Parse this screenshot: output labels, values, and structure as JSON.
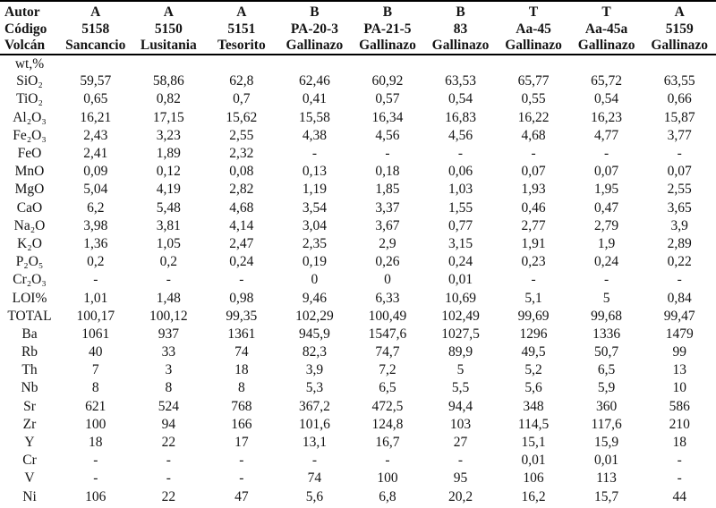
{
  "table": {
    "header": {
      "row_labels": [
        "Autor",
        "Código",
        "Volcán"
      ],
      "columns": [
        {
          "autor": "A",
          "codigo": "5158",
          "volcan": "Sancancio"
        },
        {
          "autor": "A",
          "codigo": "5150",
          "volcan": "Lusitania"
        },
        {
          "autor": "A",
          "codigo": "5151",
          "volcan": "Tesorito"
        },
        {
          "autor": "B",
          "codigo": "PA-20-3",
          "volcan": "Gallinazo"
        },
        {
          "autor": "B",
          "codigo": "PA-21-5",
          "volcan": "Gallinazo"
        },
        {
          "autor": "B",
          "codigo": "83",
          "volcan": "Gallinazo"
        },
        {
          "autor": "T",
          "codigo": "Aa-45",
          "volcan": "Gallinazo"
        },
        {
          "autor": "T",
          "codigo": "Aa-45a",
          "volcan": "Gallinazo"
        },
        {
          "autor": "A",
          "codigo": "5159",
          "volcan": "Gallinazo"
        }
      ]
    },
    "rows": [
      {
        "label": "wt,%",
        "values": [
          "",
          "",
          "",
          "",
          "",
          "",
          "",
          "",
          ""
        ]
      },
      {
        "label": "SiO₂",
        "values": [
          "59,57",
          "58,86",
          "62,8",
          "62,46",
          "60,92",
          "63,53",
          "65,77",
          "65,72",
          "63,55"
        ]
      },
      {
        "label": "TiO₂",
        "values": [
          "0,65",
          "0,82",
          "0,7",
          "0,41",
          "0,57",
          "0,54",
          "0,55",
          "0,54",
          "0,66"
        ]
      },
      {
        "label": "Al₂O₃",
        "values": [
          "16,21",
          "17,15",
          "15,62",
          "15,58",
          "16,34",
          "16,83",
          "16,22",
          "16,23",
          "15,87"
        ]
      },
      {
        "label": "Fe₂O₃",
        "values": [
          "2,43",
          "3,23",
          "2,55",
          "4,38",
          "4,56",
          "4,56",
          "4,68",
          "4,77",
          "3,77"
        ]
      },
      {
        "label": "FeO",
        "values": [
          "2,41",
          "1,89",
          "2,32",
          "-",
          "-",
          "-",
          "-",
          "-",
          "-"
        ]
      },
      {
        "label": "MnO",
        "values": [
          "0,09",
          "0,12",
          "0,08",
          "0,13",
          "0,18",
          "0,06",
          "0,07",
          "0,07",
          "0,07"
        ]
      },
      {
        "label": "MgO",
        "values": [
          "5,04",
          "4,19",
          "2,82",
          "1,19",
          "1,85",
          "1,03",
          "1,93",
          "1,95",
          "2,55"
        ]
      },
      {
        "label": "CaO",
        "values": [
          "6,2",
          "5,48",
          "4,68",
          "3,54",
          "3,37",
          "1,55",
          "0,46",
          "0,47",
          "3,65"
        ]
      },
      {
        "label": "Na₂O",
        "values": [
          "3,98",
          "3,81",
          "4,14",
          "3,04",
          "3,67",
          "0,77",
          "2,77",
          "2,79",
          "3,9"
        ]
      },
      {
        "label": "K₂O",
        "values": [
          "1,36",
          "1,05",
          "2,47",
          "2,35",
          "2,9",
          "3,15",
          "1,91",
          "1,9",
          "2,89"
        ]
      },
      {
        "label": "P₂O₅",
        "values": [
          "0,2",
          "0,2",
          "0,24",
          "0,19",
          "0,26",
          "0,24",
          "0,23",
          "0,24",
          "0,22"
        ]
      },
      {
        "label": "Cr₂O₃",
        "values": [
          "-",
          "-",
          "-",
          "0",
          "0",
          "0,01",
          "-",
          "-",
          "-"
        ]
      },
      {
        "label": "LOI%",
        "values": [
          "1,01",
          "1,48",
          "0,98",
          "9,46",
          "6,33",
          "10,69",
          "5,1",
          "5",
          "0,84"
        ]
      },
      {
        "label": "TOTAL",
        "values": [
          "100,17",
          "100,12",
          "99,35",
          "102,29",
          "100,49",
          "102,49",
          "99,69",
          "99,68",
          "99,47"
        ]
      },
      {
        "label": "Ba",
        "values": [
          "1061",
          "937",
          "1361",
          "945,9",
          "1547,6",
          "1027,5",
          "1296",
          "1336",
          "1479"
        ]
      },
      {
        "label": "Rb",
        "values": [
          "40",
          "33",
          "74",
          "82,3",
          "74,7",
          "89,9",
          "49,5",
          "50,7",
          "99"
        ]
      },
      {
        "label": "Th",
        "values": [
          "7",
          "3",
          "18",
          "3,9",
          "7,2",
          "5",
          "5,2",
          "6,5",
          "13"
        ]
      },
      {
        "label": "Nb",
        "values": [
          "8",
          "8",
          "8",
          "5,3",
          "6,5",
          "5,5",
          "5,6",
          "5,9",
          "10"
        ]
      },
      {
        "label": "Sr",
        "values": [
          "621",
          "524",
          "768",
          "367,2",
          "472,5",
          "94,4",
          "348",
          "360",
          "586"
        ]
      },
      {
        "label": "Zr",
        "values": [
          "100",
          "94",
          "166",
          "101,6",
          "124,8",
          "103",
          "114,5",
          "117,6",
          "210"
        ]
      },
      {
        "label": "Y",
        "values": [
          "18",
          "22",
          "17",
          "13,1",
          "16,7",
          "27",
          "15,1",
          "15,9",
          "18"
        ]
      },
      {
        "label": "Cr",
        "values": [
          "-",
          "-",
          "-",
          "-",
          "-",
          "-",
          "0,01",
          "0,01",
          "-"
        ]
      },
      {
        "label": "V",
        "values": [
          "-",
          "-",
          "-",
          "74",
          "100",
          "95",
          "106",
          "113",
          "-"
        ]
      },
      {
        "label": "Ni",
        "values": [
          "106",
          "22",
          "47",
          "5,6",
          "6,8",
          "20,2",
          "16,2",
          "15,7",
          "44"
        ]
      }
    ]
  }
}
